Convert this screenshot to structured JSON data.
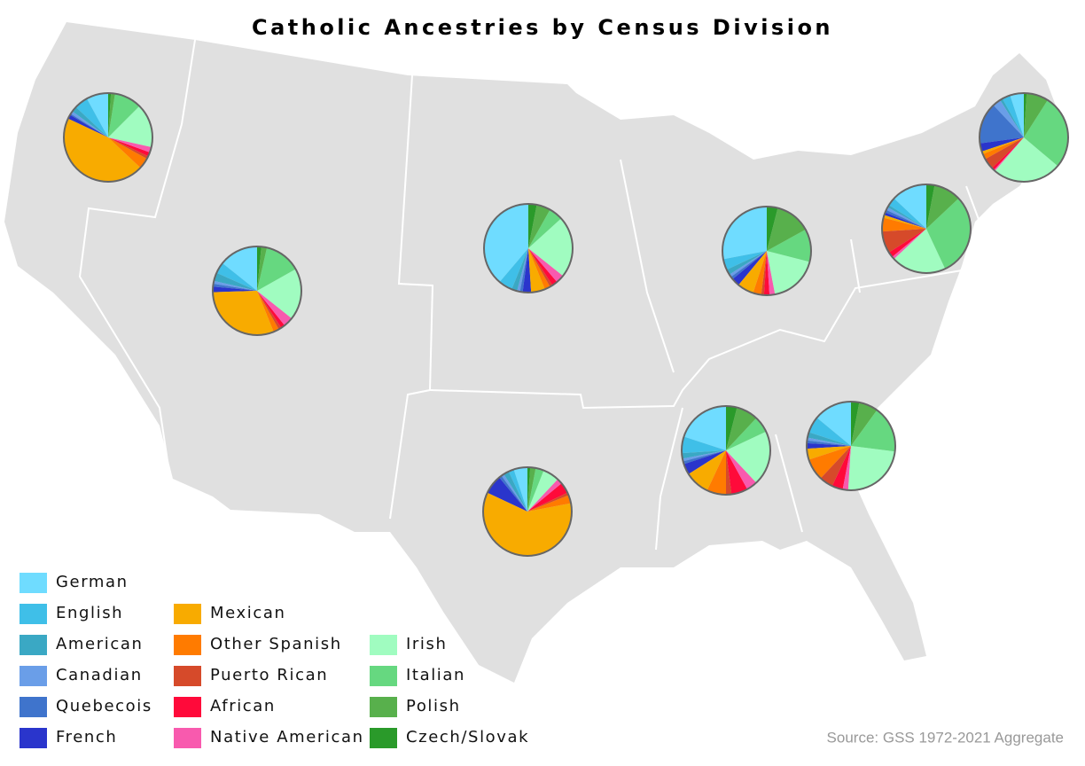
{
  "chart_data": {
    "type": "pie",
    "title": "Catholic Ancestries by Census Division",
    "source": "Source: GSS 1972-2021 Aggregate",
    "series": [
      {
        "name": "German",
        "color": "#6fdcff",
        "values": [
          8,
          14,
          38,
          28,
          5,
          13,
          20,
          14,
          5
        ]
      },
      {
        "name": "English",
        "color": "#3fbfe8",
        "values": [
          5,
          4,
          5,
          4,
          3,
          3,
          6,
          6,
          2
        ]
      },
      {
        "name": "American",
        "color": "#3aa8c4",
        "values": [
          2,
          3,
          2,
          2,
          1,
          1,
          2,
          2,
          2
        ]
      },
      {
        "name": "Canadian",
        "color": "#6a9ee8",
        "values": [
          1,
          1,
          1,
          1,
          3,
          1,
          1,
          1,
          1
        ]
      },
      {
        "name": "Quebecois",
        "color": "#3f74cc",
        "values": [
          0.5,
          1,
          1,
          1,
          15,
          1,
          1,
          1,
          1
        ]
      },
      {
        "name": "French",
        "color": "#2a35cc",
        "values": [
          1.5,
          2,
          3,
          3,
          3,
          1,
          4,
          2,
          7
        ]
      },
      {
        "name": "Mexican",
        "color": "#f8ab00",
        "values": [
          45,
          30,
          5,
          6,
          1,
          1,
          9,
          4,
          60
        ]
      },
      {
        "name": "Other Spanish",
        "color": "#ff7b00",
        "values": [
          4,
          2,
          2,
          3,
          2,
          5,
          7,
          8,
          3
        ]
      },
      {
        "name": "Puerto Rican",
        "color": "#d64a2a",
        "values": [
          1,
          1,
          1,
          1,
          4,
          8,
          2,
          5,
          1
        ]
      },
      {
        "name": "African",
        "color": "#ff0a3a",
        "values": [
          1.5,
          1.5,
          2,
          2,
          1,
          2,
          6,
          4,
          4
        ]
      },
      {
        "name": "Native American",
        "color": "#f85aae",
        "values": [
          2,
          3.5,
          3,
          2,
          0.5,
          1,
          4,
          2,
          2
        ]
      },
      {
        "name": "Irish",
        "color": "#a0fcc0",
        "values": [
          16,
          18.5,
          22,
          18,
          25,
          20,
          20,
          24,
          6
        ]
      },
      {
        "name": "Italian",
        "color": "#66d880",
        "values": [
          10,
          13,
          5,
          12,
          27,
          30,
          6,
          17,
          3
        ]
      },
      {
        "name": "Polish",
        "color": "#58b04c",
        "values": [
          1.5,
          2,
          5,
          13,
          8,
          10,
          8,
          7,
          2
        ]
      },
      {
        "name": "Czech/Slovak",
        "color": "#2a9a2a",
        "values": [
          1,
          1.5,
          3,
          4,
          1,
          3,
          4,
          3,
          1
        ]
      }
    ]
  }
}
